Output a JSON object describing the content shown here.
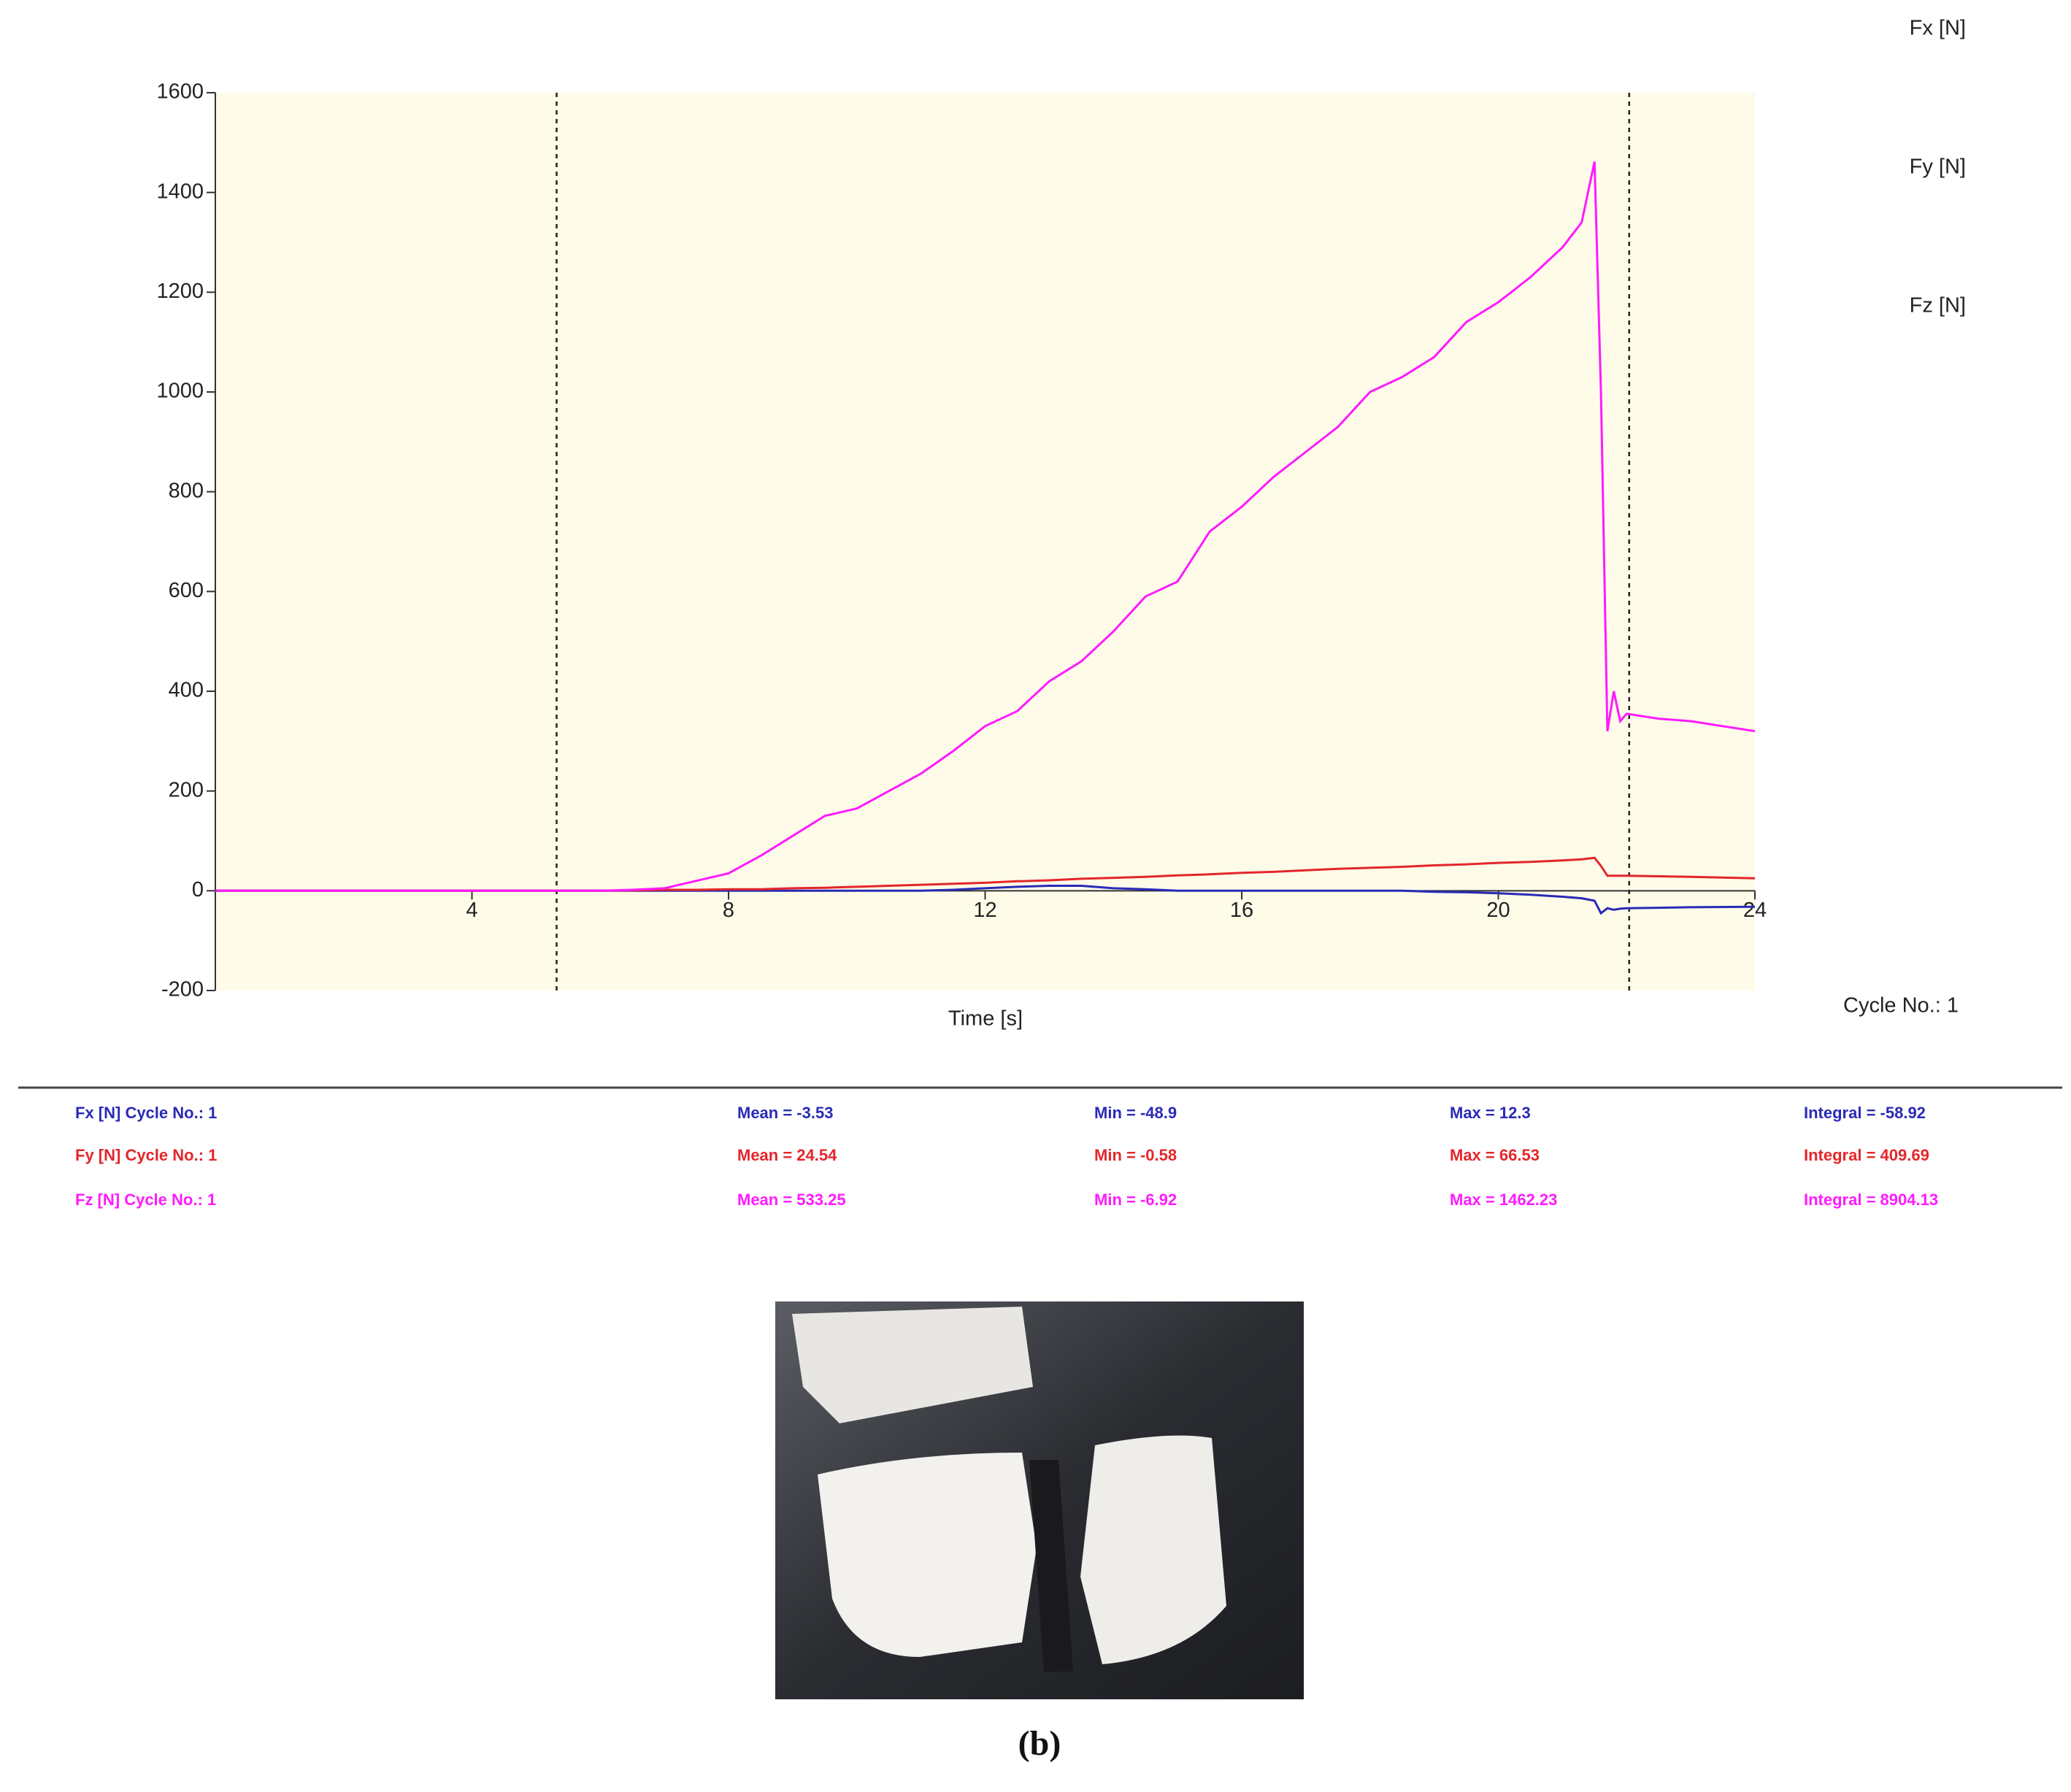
{
  "chart_data": {
    "type": "line",
    "x": [
      0,
      1,
      2,
      3,
      4,
      5,
      6,
      6.5,
      7,
      7.5,
      8,
      8.5,
      9,
      9.5,
      10,
      10.5,
      11,
      11.5,
      12,
      12.5,
      13,
      13.5,
      14,
      14.5,
      15,
      15.5,
      16,
      16.5,
      17,
      17.5,
      18,
      18.5,
      19,
      19.5,
      20,
      20.5,
      21,
      21.3,
      21.5,
      21.6,
      21.7,
      21.8,
      21.9,
      22,
      22.5,
      23,
      24
    ],
    "series": [
      {
        "name": "Fx [N]",
        "color": "#2a2ab8",
        "values": [
          0,
          0,
          0,
          0,
          0,
          0,
          0,
          0,
          0,
          0,
          0,
          0,
          0,
          0,
          0,
          0,
          0,
          2,
          5,
          8,
          10,
          10,
          5,
          3,
          0,
          0,
          0,
          0,
          0,
          0,
          0,
          0,
          -2,
          -3,
          -5,
          -8,
          -12,
          -15,
          -20,
          -45,
          -35,
          -38,
          -36,
          -35,
          -34,
          -33,
          -32
        ]
      },
      {
        "name": "Fy [N]",
        "color": "#e3262a",
        "values": [
          0,
          0,
          0,
          0,
          0,
          0,
          0,
          1,
          2,
          2,
          3,
          3,
          5,
          6,
          8,
          10,
          12,
          14,
          16,
          19,
          21,
          24,
          26,
          28,
          31,
          33,
          36,
          38,
          41,
          44,
          46,
          48,
          51,
          53,
          56,
          58,
          61,
          63,
          66,
          50,
          30,
          30,
          30,
          30,
          29,
          28,
          25
        ]
      },
      {
        "name": "Fz [N]",
        "color": "#ff1aff",
        "values": [
          0,
          0,
          0,
          0,
          0,
          0,
          0,
          2,
          5,
          20,
          35,
          70,
          110,
          150,
          165,
          200,
          235,
          280,
          330,
          360,
          420,
          460,
          520,
          590,
          620,
          720,
          770,
          830,
          880,
          930,
          1000,
          1030,
          1070,
          1140,
          1180,
          1230,
          1290,
          1340,
          1462,
          1000,
          320,
          400,
          340,
          355,
          345,
          340,
          320
        ]
      }
    ],
    "xlim": [
      0,
      24
    ],
    "xticks": [
      4,
      8,
      12,
      16,
      20,
      24
    ],
    "ylim": [
      -200,
      1600
    ],
    "yticks": [
      -200,
      0,
      200,
      400,
      600,
      800,
      1000,
      1200,
      1400,
      1600
    ],
    "xlabel": "Time [s]",
    "annotation": "Cycle No.: 1",
    "markers_x": [
      5.32,
      22.04
    ],
    "legend": "top-right outside"
  },
  "stats": {
    "rows": [
      [
        "Fx [N] Cycle No.: 1",
        "Mean = -3.53",
        "Min = -48.9",
        "Max = 12.3",
        "Integral = -58.92"
      ],
      [
        "Fy [N] Cycle No.: 1",
        "Mean = 24.54",
        "Min = -0.58",
        "Max = 66.53",
        "Integral = 409.69"
      ],
      [
        "Fz [N] Cycle No.: 1",
        "Mean = 533.25",
        "Min = -6.92",
        "Max = 1462.23",
        "Integral = 8904.13"
      ]
    ]
  },
  "caption": "(b)"
}
